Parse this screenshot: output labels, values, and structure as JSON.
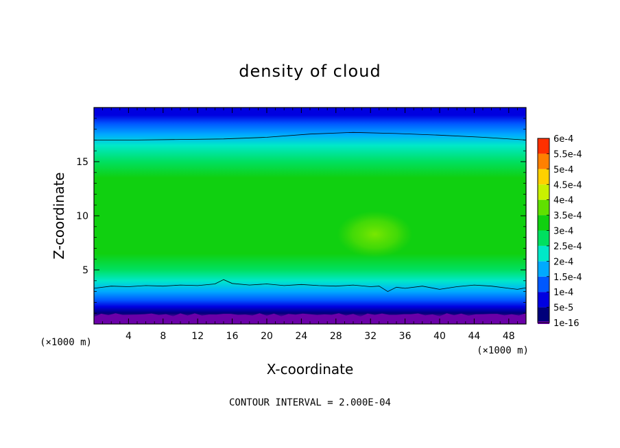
{
  "chart_data": {
    "type": "heatmap",
    "title": "density of cloud",
    "xlabel": "X-coordinate",
    "ylabel": "Z-coordinate",
    "x_unit": "(×1000 m)",
    "y_unit": "(×1000 m)",
    "xlim": [
      0,
      50
    ],
    "ylim": [
      0,
      20
    ],
    "x_ticks": [
      4,
      8,
      12,
      16,
      20,
      24,
      28,
      32,
      36,
      40,
      44,
      48
    ],
    "y_ticks": [
      5,
      10,
      15
    ],
    "footer": "CONTOUR INTERVAL = 2.000E-04",
    "colorbar": {
      "labels": [
        "1e-16",
        "5e-5",
        "1e-4",
        "1.5e-4",
        "2e-4",
        "2.5e-4",
        "3e-4",
        "3.5e-4",
        "4e-4",
        "4.5e-4",
        "5e-4",
        "5.5e-4",
        "6e-4"
      ],
      "colors": [
        "#6a00a8",
        "#00007a",
        "#0000e0",
        "#0058ff",
        "#00aaff",
        "#00e8c8",
        "#00e060",
        "#10d010",
        "#60e000",
        "#c8f000",
        "#ffd000",
        "#ff8000",
        "#ff3000",
        "#ff8080"
      ]
    },
    "profile_z": [
      0.0,
      0.6,
      1.0,
      1.6,
      2.2,
      3.0,
      4.0,
      5.0,
      6.5,
      8.0,
      9.5,
      11.5,
      13.5,
      15.0,
      16.5,
      17.5,
      18.5,
      19.3,
      20.0
    ],
    "profile_density": [
      1e-16,
      1e-16,
      2e-05,
      7e-05,
      0.00012,
      0.00017,
      0.00023,
      0.00028,
      0.00031,
      0.00033,
      0.00034,
      0.00032,
      0.0003,
      0.00027,
      0.00024,
      0.00019,
      0.00014,
      9e-05,
      5e-05
    ],
    "contours": [
      {
        "level": 0.0002,
        "x": [
          0,
          5,
          10,
          15,
          20,
          25,
          30,
          35,
          40,
          45,
          49,
          50
        ],
        "z": [
          17.0,
          17.0,
          17.05,
          17.1,
          17.25,
          17.55,
          17.7,
          17.6,
          17.45,
          17.25,
          17.05,
          17.0
        ]
      },
      {
        "level": 0.0002,
        "x": [
          0,
          2,
          4,
          6,
          8,
          10,
          12,
          14,
          15,
          16,
          18,
          20,
          22,
          24,
          26,
          28,
          30,
          32,
          33,
          34,
          35,
          36,
          38,
          40,
          42,
          44,
          46,
          48,
          49,
          50
        ],
        "z": [
          3.3,
          3.5,
          3.45,
          3.55,
          3.5,
          3.6,
          3.55,
          3.7,
          4.1,
          3.75,
          3.6,
          3.7,
          3.55,
          3.65,
          3.55,
          3.5,
          3.6,
          3.45,
          3.5,
          3.0,
          3.4,
          3.3,
          3.5,
          3.2,
          3.45,
          3.6,
          3.5,
          3.3,
          3.2,
          3.35
        ]
      }
    ],
    "blob": {
      "x": 32.5,
      "z": 8.3,
      "density": 0.00038
    }
  }
}
